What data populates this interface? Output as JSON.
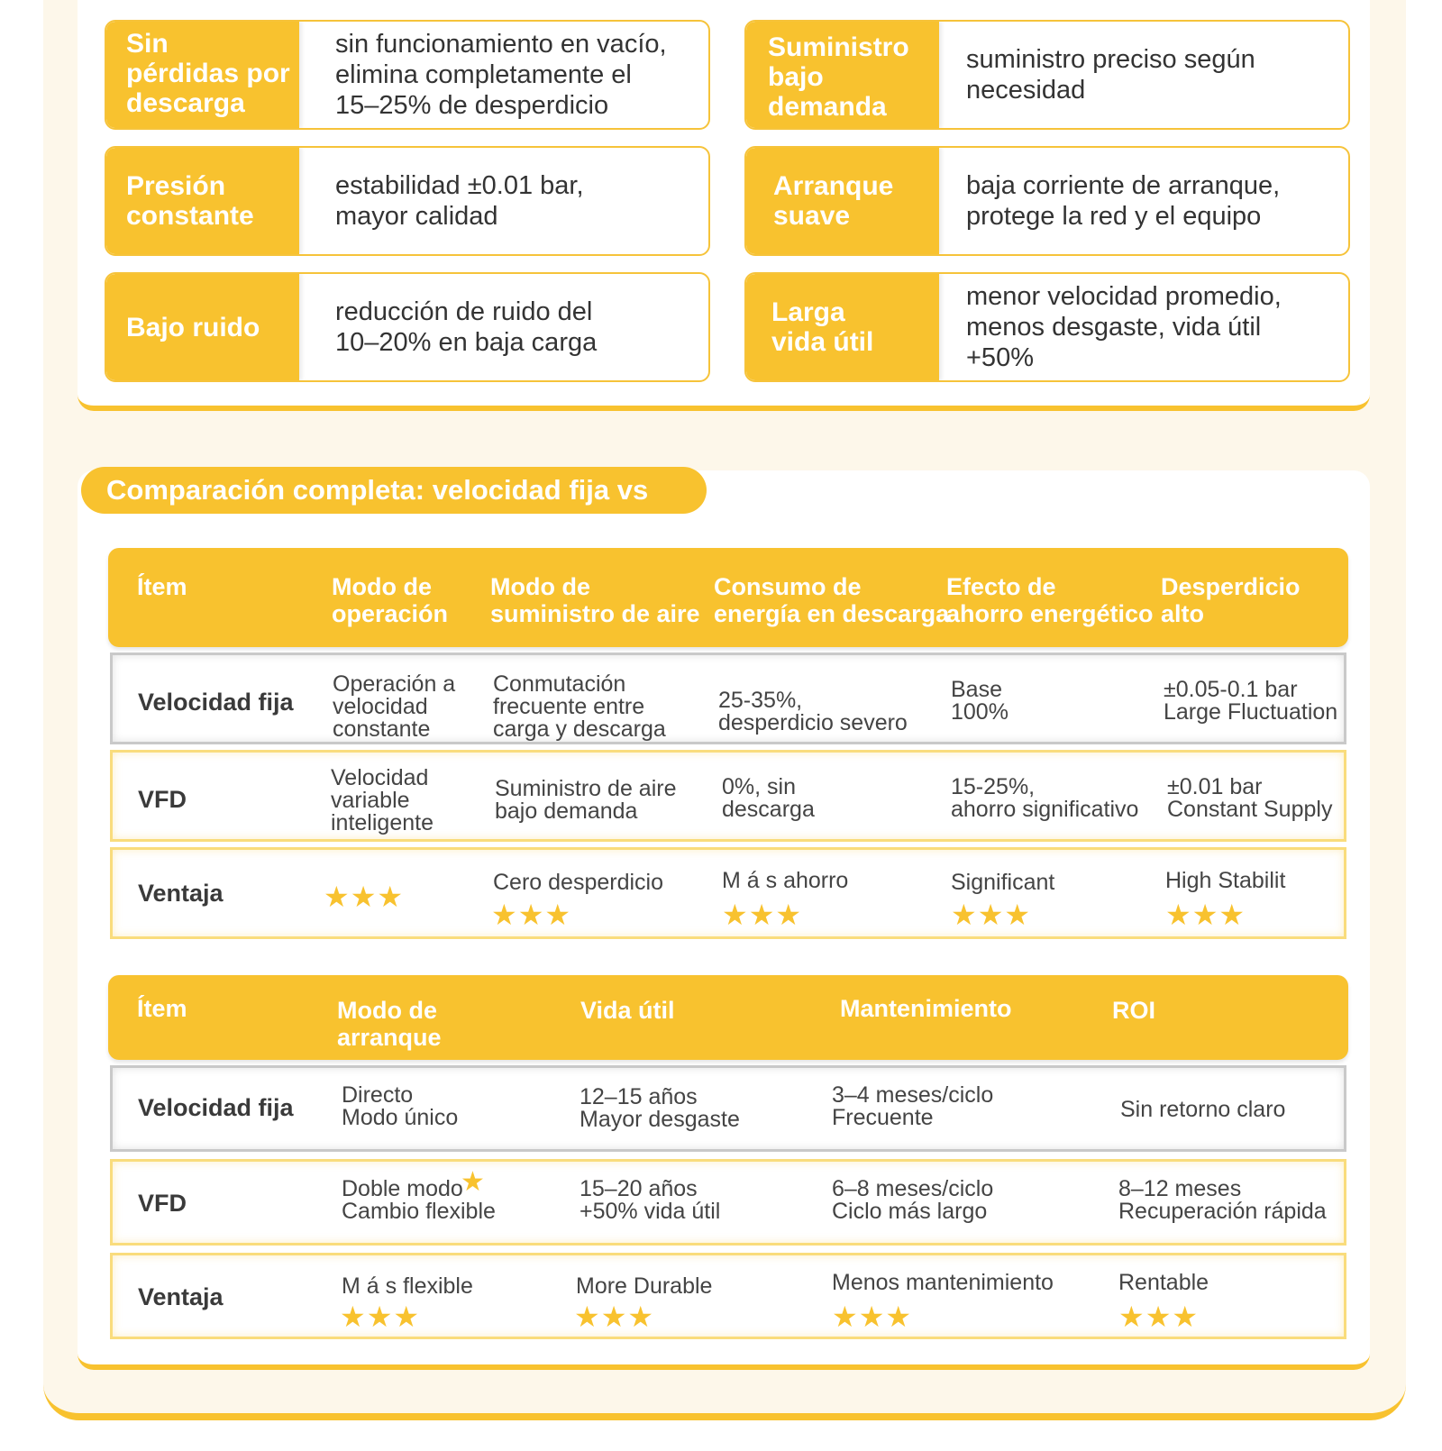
{
  "features": [
    {
      "tag": "Sin\npérdidas por\n descarga",
      "text": "sin funcionamiento en vacío,\nelimina completamente el\n15–25% de desperdicio"
    },
    {
      "tag": " Suministro\nbajo\ndemanda",
      "text": "suministro preciso según\nnecesidad"
    },
    {
      "tag": " Presión\nconstante",
      "text": " estabilidad ±0.01 bar,\nmayor calidad"
    },
    {
      "tag": "Arranque\nsuave",
      "text": " baja corriente de arranque,\nprotege la red y el equipo"
    },
    {
      "tag": "Bajo ruido",
      "text": "reducción de ruido del\n10–20% en baja carga"
    },
    {
      "tag": " Larga\nvida útil",
      "text": "menor velocidad promedio,\nmenos desgaste, vida útil +50%"
    }
  ],
  "comparison": {
    "title": "Comparación completa: velocidad fija vs VFD",
    "table1": {
      "headers": [
        "Ítem",
        "Modo de\noperación",
        "Modo de\nsuministro de aire",
        "Consumo de\nenergía en descarga",
        "Efecto de\nahorro energético",
        "Desperdicio\nalto"
      ],
      "rows": [
        {
          "label": "Velocidad fija",
          "cells": [
            "Operación a\nvelocidad\nconstante",
            "Conmutación\nfrecuente entre\ncarga y descarga",
            "25-35%,\ndesperdicio severo",
            "Base\n100%",
            "±0.05-0.1 bar\nLarge Fluctuation"
          ]
        },
        {
          "label": "VFD",
          "cells": [
            "Velocidad\nvariable\ninteligente",
            "Suministro de aire\nbajo demanda",
            "0%, sin\ndescarga",
            "15-25%,\nahorro significativo",
            "±0.01 bar\nConstant Supply"
          ]
        },
        {
          "label": "Ventaja",
          "cells": [
            "",
            "Cero desperdicio",
            "M á s ahorro",
            "Significant",
            "High Stabilit"
          ],
          "stars": "★★★"
        }
      ]
    },
    "table2": {
      "headers": [
        "Ítem",
        "Modo de\narranque",
        "Vida útil",
        "Mantenimiento",
        "ROI"
      ],
      "rows": [
        {
          "label": "Velocidad fija",
          "cells": [
            "Directo\nModo único",
            "12–15 años\nMayor desgaste",
            "3–4 meses/ciclo\nFrecuente",
            "Sin retorno claro"
          ]
        },
        {
          "label": "VFD",
          "cells": [
            "Doble modo\nCambio flexible",
            "15–20 años\n+50% vida útil",
            "6–8 meses/ciclo\nCiclo más largo",
            "8–12 meses\nRecuperación rápida"
          ],
          "inline_star": "★"
        },
        {
          "label": "Ventaja",
          "cells": [
            "M á s flexible",
            "More Durable",
            "Menos mantenimiento",
            "Rentable"
          ],
          "stars": "★★★"
        }
      ]
    }
  },
  "colors": {
    "accent": "#f8c22f",
    "background": "#fdf7ea",
    "text": "#333333"
  },
  "icons": {
    "rating": "star-icon"
  }
}
